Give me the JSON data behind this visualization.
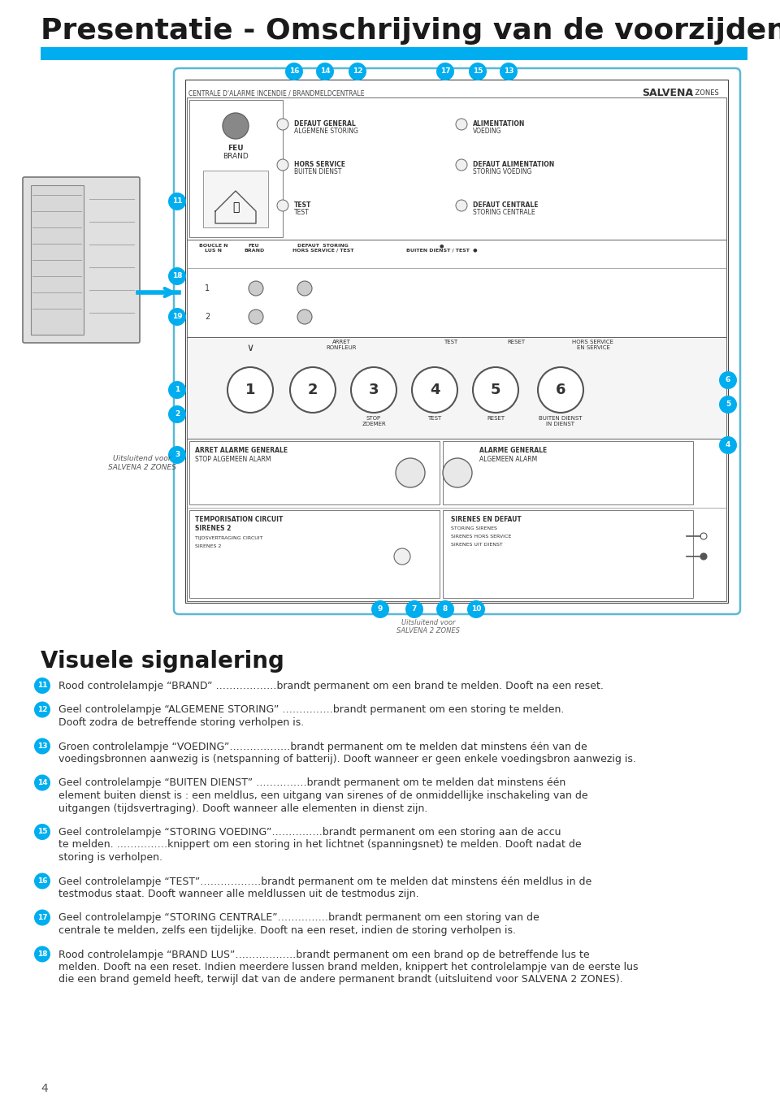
{
  "title": "Presentatie - Omschrijving van de voorzijden",
  "title_color": "#1a1a1a",
  "cyan_bar_color": "#00AEEF",
  "page_bg": "#ffffff",
  "section_heading": "Visuele signalering",
  "page_number": "4",
  "items": [
    {
      "number": "11",
      "text": "Rood controlelampje “BRAND” ………………brandt permanent om een brand te melden. Dooft na een reset."
    },
    {
      "number": "12",
      "text": "Geel controlelampje “ALGEMENE STORING” ……………brandt permanent om een storing te melden.\nDooft zodra de betreffende storing verholpen is."
    },
    {
      "number": "13",
      "text": "Groen controlelampje “VOEDING”………………brandt permanent om te melden dat minstens één van de\nvoedingsbronnen aanwezig is (netspanning of batterij). Dooft wanneer er geen enkele voedingsbron aanwezig is."
    },
    {
      "number": "14",
      "text": "Geel controlelampje “BUITEN DIENST” ……………brandt permanent om te melden dat minstens één\nelement buiten dienst is : een meldlus, een uitgang van sirenes of de onmiddellijke inschakeling van de\nuitgangen (tijdsvertraging). Dooft wanneer alle elementen in dienst zijn."
    },
    {
      "number": "15",
      "text": "Geel controlelampje “STORING VOEDING”……………brandt permanent om een storing aan de accu\nte melden. ……………knippert om een storing in het lichtnet (spanningsnet) te melden. Dooft nadat de\nstoring is verholpen."
    },
    {
      "number": "16",
      "text": "Geel controlelampje “TEST”………………brandt permanent om te melden dat minstens één meldlus in de\ntestmodus staat. Dooft wanneer alle meldlussen uit de testmodus zijn."
    },
    {
      "number": "17",
      "text": "Geel controlelampje “STORING CENTRALE”……………brandt permanent om een storing van de\ncentrale te melden, zelfs een tijdelijke. Dooft na een reset, indien de storing verholpen is."
    },
    {
      "number": "18",
      "text": "Rood controlelampje “BRAND LUS”………………brandt permanent om een brand op de betreffende lus te\nmelden. Dooft na een reset. Indien meerdere lussen brand melden, knippert het controlelampje van de eerste lus\ndie een brand gemeld heeft, terwijl dat van de andere permanent brandt (uitsluitend voor SALVENA 2 ZONES)."
    }
  ]
}
